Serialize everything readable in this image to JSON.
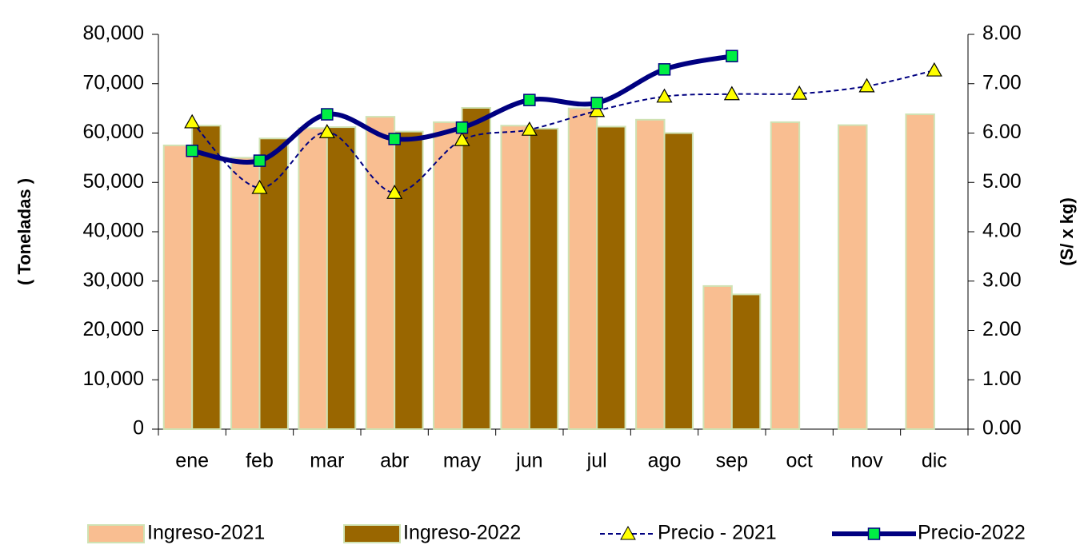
{
  "chart_data": {
    "type": "bar",
    "y_label": "( Toneladas )",
    "y2_label": "(S/ x kg)",
    "categories": [
      "ene",
      "feb",
      "mar",
      "abr",
      "may",
      "jun",
      "jul",
      "ago",
      "sep",
      "oct",
      "nov",
      "dic"
    ],
    "ylim": [
      0,
      80000
    ],
    "yticks": [
      0,
      {
        "value": 10000,
        "label": "10,000"
      },
      {
        "value": 20000,
        "label": "20,000"
      },
      {
        "value": 30000,
        "label": "30,000"
      },
      {
        "value": 40000,
        "label": "40,000"
      },
      {
        "value": 50000,
        "label": "50,000"
      },
      {
        "value": 60000,
        "label": "60,000"
      },
      {
        "value": 70000,
        "label": "70,000"
      },
      {
        "value": 80000,
        "label": "80,000"
      }
    ],
    "y2lim": [
      0,
      8
    ],
    "y2ticks": [
      {
        "value": 0,
        "label": "0.00"
      },
      {
        "value": 1,
        "label": "1.00"
      },
      {
        "value": 2,
        "label": "2.00"
      },
      {
        "value": 3,
        "label": "3.00"
      },
      {
        "value": 4,
        "label": "4.00"
      },
      {
        "value": 5,
        "label": "5.00"
      },
      {
        "value": 6,
        "label": "6.00"
      },
      {
        "value": 7,
        "label": "7.00"
      },
      {
        "value": 8,
        "label": "8.00"
      }
    ],
    "grid": false,
    "legend": "bottom",
    "series": [
      {
        "name": "Ingreso-2021",
        "type": "bar",
        "color": "#f9be91",
        "values": [
          57500,
          55000,
          61000,
          63300,
          62200,
          61500,
          65000,
          62700,
          29000,
          62200,
          61600,
          63800
        ]
      },
      {
        "name": "Ingreso-2022",
        "type": "bar",
        "color": "#996600",
        "values": [
          61500,
          58900,
          61200,
          60300,
          65100,
          60900,
          61300,
          60000,
          27300,
          null,
          null,
          null
        ]
      },
      {
        "name": "Precio - 2021",
        "type": "line",
        "axis": "y2",
        "color": "#000080",
        "dashed": true,
        "marker": "triangle",
        "marker_color": "#ffff00",
        "values": [
          6.22,
          4.89,
          6.02,
          4.79,
          5.86,
          6.07,
          6.45,
          6.74,
          6.79,
          6.8,
          6.95,
          7.27
        ]
      },
      {
        "name": "Precio-2022",
        "type": "line",
        "axis": "y2",
        "color": "#000080",
        "dashed": false,
        "marker": "square",
        "marker_color": "#00ee44",
        "values": [
          5.64,
          5.44,
          6.38,
          5.88,
          6.11,
          6.67,
          6.61,
          7.29,
          7.56,
          null,
          null,
          null
        ]
      }
    ]
  }
}
